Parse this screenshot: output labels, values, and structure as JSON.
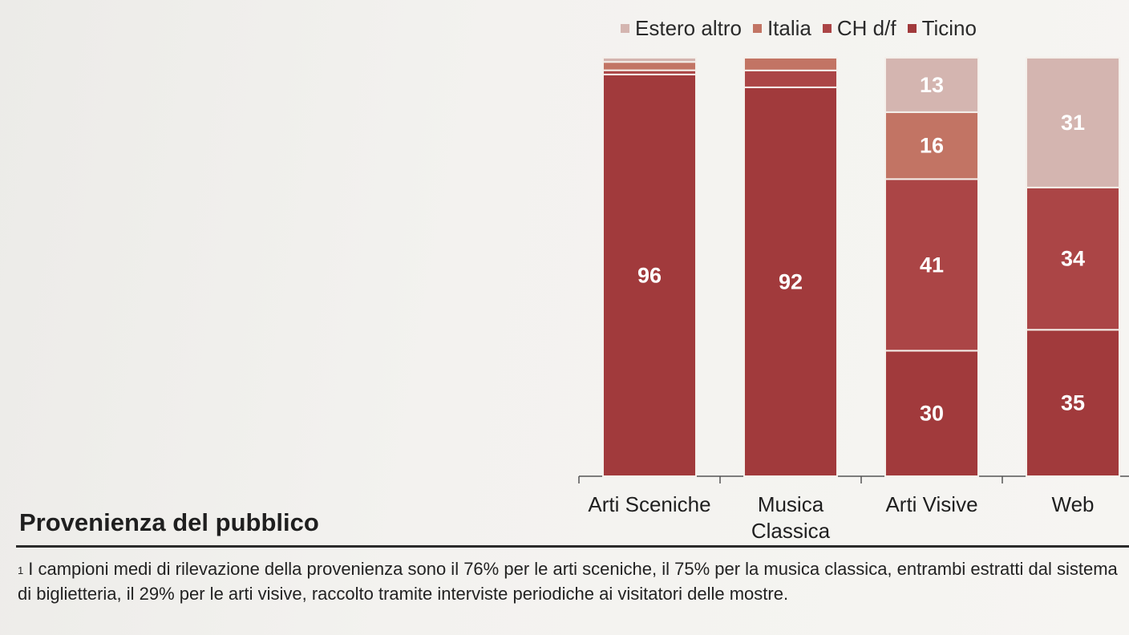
{
  "chart_data": {
    "type": "bar",
    "stacked": true,
    "categories": [
      "Arti Sceniche",
      "Musica\nClassica",
      "Arti Visive",
      "Web"
    ],
    "series": [
      {
        "name": "Ticino",
        "color": "#a13a3c",
        "values": [
          96,
          92,
          30,
          35
        ],
        "labels": [
          "96",
          "92",
          "30",
          "35"
        ]
      },
      {
        "name": "CH d/f",
        "color": "#ab4546",
        "values": [
          1,
          4,
          41,
          34
        ],
        "labels": [
          "",
          "",
          "41",
          "34"
        ]
      },
      {
        "name": "Italia",
        "color": "#c27464",
        "values": [
          2,
          3,
          16,
          0
        ],
        "labels": [
          "",
          "",
          "16",
          ""
        ]
      },
      {
        "name": "Estero altro",
        "color": "#d4b5b0",
        "values": [
          1,
          0,
          13,
          31
        ],
        "labels": [
          "",
          "",
          "13",
          "31"
        ]
      }
    ],
    "ylim": [
      0,
      100
    ],
    "legend": [
      "Estero altro",
      "Italia",
      "CH d/f",
      "Ticino"
    ],
    "legend_position": "top"
  },
  "title": "Provenienza del pubblico",
  "footnote": {
    "marker": "1",
    "text": "I campioni medi di rilevazione della provenienza sono il 76% per le arti sceniche, il 75% per la musica classica, entrambi estratti dal sistema di biglietteria, il 29% per le arti visive, raccolto tramite interviste periodiche ai visitatori delle mostre."
  }
}
